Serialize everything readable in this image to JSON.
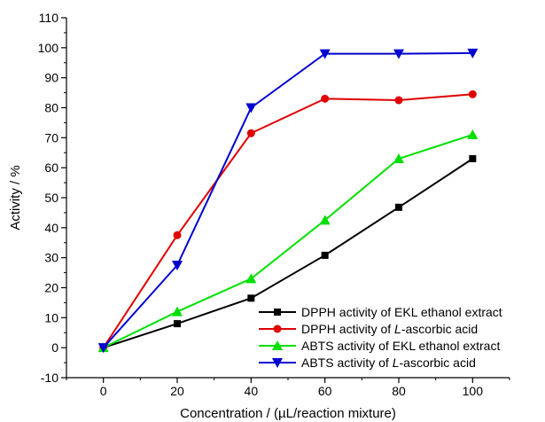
{
  "chart_data": {
    "type": "line",
    "xlabel": "Concentration / (µL/reaction mixture)",
    "ylabel": "Activity / %",
    "x": [
      0,
      20,
      40,
      60,
      80,
      100
    ],
    "xlim": [
      -10,
      110
    ],
    "ylim": [
      -10,
      110
    ],
    "xticks": [
      0,
      20,
      40,
      60,
      80,
      100
    ],
    "yticks": [
      -10,
      0,
      10,
      20,
      30,
      40,
      50,
      60,
      70,
      80,
      90,
      100,
      110
    ],
    "grid": false,
    "legend_position": "bottom-right",
    "series": [
      {
        "name": "DPPH activity of EKL ethanol extract",
        "name_prefix": "DPPH activity of EKL ethanol extract",
        "name_italic": "",
        "name_suffix": "",
        "color": "#000000",
        "marker": "square",
        "values": [
          0,
          8,
          16.5,
          30.8,
          46.8,
          63
        ]
      },
      {
        "name": "DPPH activity of L-ascorbic acid",
        "name_prefix": "DPPH activity of ",
        "name_italic": "L",
        "name_suffix": "-ascorbic acid",
        "color": "#e00000",
        "marker": "circle",
        "values": [
          0,
          37.5,
          71.5,
          83,
          82.5,
          84.5
        ]
      },
      {
        "name": "ABTS activity of EKL ethanol extract",
        "name_prefix": "ABTS activity of EKL ethanol extract",
        "name_italic": "",
        "name_suffix": "",
        "color": "#00e000",
        "marker": "triangle-up",
        "values": [
          0,
          12,
          23,
          42.5,
          63,
          71
        ]
      },
      {
        "name": "ABTS activity of L-ascorbic acid",
        "name_prefix": "ABTS activity of ",
        "name_italic": "L",
        "name_suffix": "-ascorbic acid",
        "color": "#0000d0",
        "marker": "triangle-down",
        "values": [
          0,
          27.5,
          80,
          98,
          98,
          98.2
        ]
      }
    ]
  }
}
